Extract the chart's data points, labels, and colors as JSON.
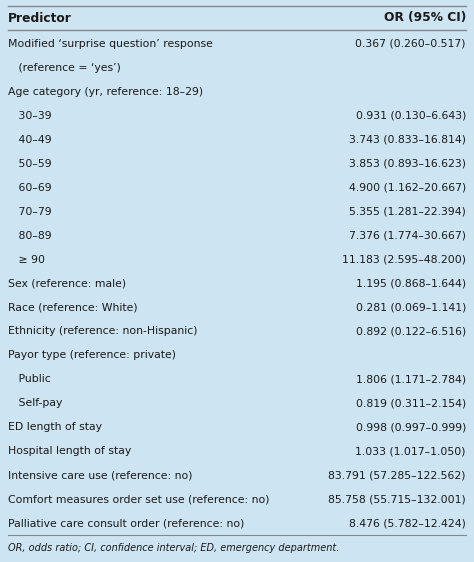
{
  "title_col1": "Predictor",
  "title_col2": "OR (95% CI)",
  "rows": [
    {
      "text": "Modified ‘surprise question’ response",
      "value": "0.367 (0.260–0.517)",
      "empty_value": false
    },
    {
      "text": "   (reference = ‘yes’)",
      "value": "",
      "empty_value": true
    },
    {
      "text": "Age category (yr, reference: 18–29)",
      "value": "",
      "empty_value": true
    },
    {
      "text": "   30–39",
      "value": "0.931 (0.130–6.643)",
      "empty_value": false
    },
    {
      "text": "   40–49",
      "value": "3.743 (0.833–16.814)",
      "empty_value": false
    },
    {
      "text": "   50–59",
      "value": "3.853 (0.893–16.623)",
      "empty_value": false
    },
    {
      "text": "   60–69",
      "value": "4.900 (1.162–20.667)",
      "empty_value": false
    },
    {
      "text": "   70–79",
      "value": "5.355 (1.281–22.394)",
      "empty_value": false
    },
    {
      "text": "   80–89",
      "value": "7.376 (1.774–30.667)",
      "empty_value": false
    },
    {
      "text": "   ≥ 90",
      "value": "11.183 (2.595–48.200)",
      "empty_value": false
    },
    {
      "text": "Sex (reference: male)",
      "value": "1.195 (0.868–1.644)",
      "empty_value": false
    },
    {
      "text": "Race (reference: White)",
      "value": "0.281 (0.069–1.141)",
      "empty_value": false
    },
    {
      "text": "Ethnicity (reference: non-Hispanic)",
      "value": "0.892 (0.122–6.516)",
      "empty_value": false
    },
    {
      "text": "Payor type (reference: private)",
      "value": "",
      "empty_value": true
    },
    {
      "text": "   Public",
      "value": "1.806 (1.171–2.784)",
      "empty_value": false
    },
    {
      "text": "   Self-pay",
      "value": "0.819 (0.311–2.154)",
      "empty_value": false
    },
    {
      "text": "ED length of stay",
      "value": "0.998 (0.997–0.999)",
      "empty_value": false
    },
    {
      "text": "Hospital length of stay",
      "value": "1.033 (1.017–1.050)",
      "empty_value": false
    },
    {
      "text": "Intensive care use (reference: no)",
      "value": "83.791 (57.285–122.562)",
      "empty_value": false
    },
    {
      "text": "Comfort measures order set use (reference: no)",
      "value": "85.758 (55.715–132.001)",
      "empty_value": false
    },
    {
      "text": "Palliative care consult order (reference: no)",
      "value": "8.476 (5.782–12.424)",
      "empty_value": false
    }
  ],
  "footnote": "OR, odds ratio; CI, confidence interval; ED, emergency department.",
  "bg_color": "#cde4f2",
  "text_color": "#1a1a1a",
  "line_color": "#888888",
  "font_size": 7.8,
  "header_font_size": 8.8
}
